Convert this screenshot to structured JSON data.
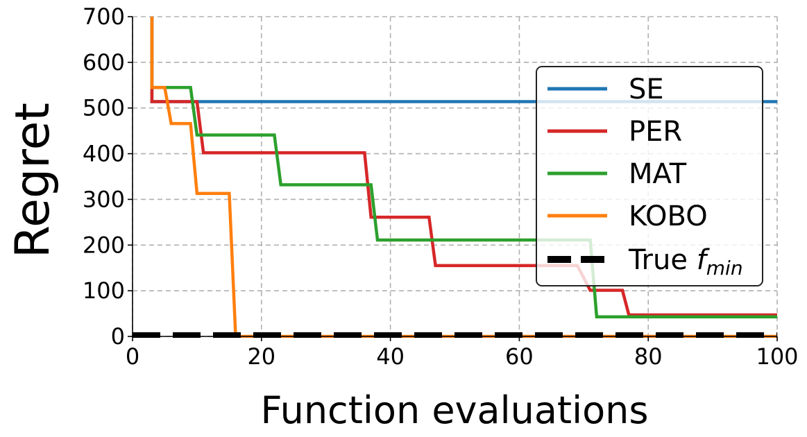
{
  "chart_data": {
    "type": "line",
    "xlabel": "Function evaluations",
    "ylabel": "Regret",
    "xlim": [
      0,
      100
    ],
    "ylim": [
      0,
      700
    ],
    "xticks": [
      "0",
      "20",
      "40",
      "60",
      "80",
      "100"
    ],
    "yticks": [
      "0",
      "100",
      "200",
      "300",
      "400",
      "500",
      "600",
      "700"
    ],
    "grid": true,
    "legend_position": "right",
    "series": [
      {
        "name": "SE",
        "color": "#1f77b4",
        "style": "solid",
        "x": [
          3,
          3,
          100
        ],
        "y": [
          700,
          514,
          514
        ]
      },
      {
        "name": "PER",
        "color": "#d62728",
        "style": "solid",
        "x": [
          3,
          3,
          10,
          11,
          36,
          37,
          46,
          47,
          69,
          71,
          76,
          77,
          100
        ],
        "y": [
          700,
          514,
          514,
          402,
          402,
          261,
          261,
          155,
          155,
          101,
          101,
          47,
          47
        ]
      },
      {
        "name": "MAT",
        "color": "#2ca02c",
        "style": "solid",
        "x": [
          3,
          3,
          9,
          10,
          22,
          23,
          37,
          38,
          71,
          72,
          100
        ],
        "y": [
          700,
          545,
          545,
          441,
          441,
          332,
          332,
          211,
          211,
          43,
          43
        ]
      },
      {
        "name": "KOBO",
        "color": "#ff7f0e",
        "style": "solid",
        "x": [
          3,
          3,
          5,
          6,
          9,
          10,
          15,
          16,
          100
        ],
        "y": [
          700,
          545,
          545,
          466,
          466,
          313,
          313,
          0,
          0
        ]
      },
      {
        "name": "True f_min",
        "color": "#000000",
        "style": "dashed",
        "x": [
          0,
          100
        ],
        "y": [
          3,
          3
        ]
      }
    ],
    "legend": {
      "labels": [
        "SE",
        "PER",
        "MAT",
        "KOBO"
      ],
      "true_prefix": "True ",
      "true_symbol": "f",
      "true_subscript": "min"
    }
  }
}
